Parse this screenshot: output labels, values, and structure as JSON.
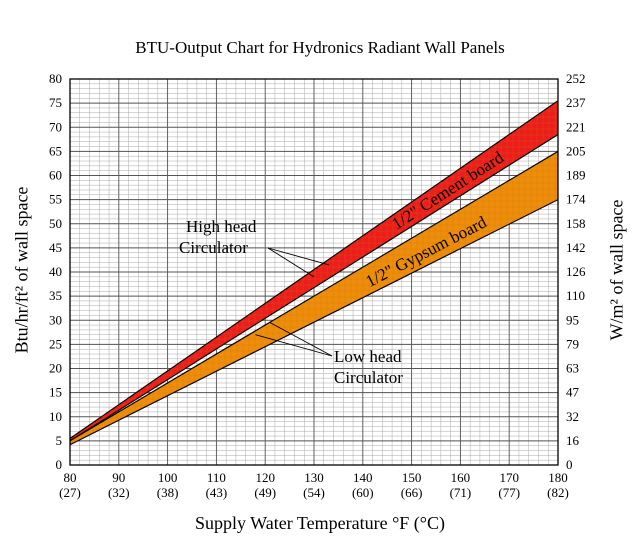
{
  "chart_data": {
    "type": "area",
    "title": "BTU-Output Chart for Hydronics Radiant Wall Panels",
    "xlabel": "Supply Water Temperature °F (°C)",
    "ylabel_left": "Btu/hr/ft² of wall space",
    "ylabel_right": "W/m² of wall space",
    "xlim": [
      80,
      180
    ],
    "ylim": [
      0,
      80
    ],
    "x_ticks": [
      80,
      90,
      100,
      110,
      120,
      130,
      140,
      150,
      160,
      170,
      180
    ],
    "x_ticks_celsius": [
      "(27)",
      "(32)",
      "(38)",
      "(43)",
      "(49)",
      "(54)",
      "(60)",
      "(66)",
      "(71)",
      "(77)",
      "(82)"
    ],
    "y_ticks_left": [
      0,
      5,
      10,
      15,
      20,
      25,
      30,
      35,
      40,
      45,
      50,
      55,
      60,
      65,
      70,
      75,
      80
    ],
    "y_ticks_right": [
      "0",
      "16",
      "32",
      "47",
      "63",
      "79",
      "95",
      "110",
      "126",
      "142",
      "158",
      "174",
      "189",
      "205",
      "221",
      "237",
      "252"
    ],
    "grid": true,
    "series": [
      {
        "name": "1/2\" Cement board",
        "color": "#ee1c1c",
        "x": [
          80,
          180
        ],
        "upper": [
          5.5,
          75.5
        ],
        "lower": [
          5,
          68.5
        ]
      },
      {
        "name": "1/2\" Gypsum board",
        "color": "#ef8c0c",
        "x": [
          80,
          180
        ],
        "upper": [
          5,
          65
        ],
        "lower": [
          4.2,
          55
        ]
      }
    ],
    "annotations": [
      {
        "lines": [
          "High head",
          "Circulator"
        ]
      },
      {
        "lines": [
          "Low head",
          "Circulator"
        ]
      }
    ]
  }
}
